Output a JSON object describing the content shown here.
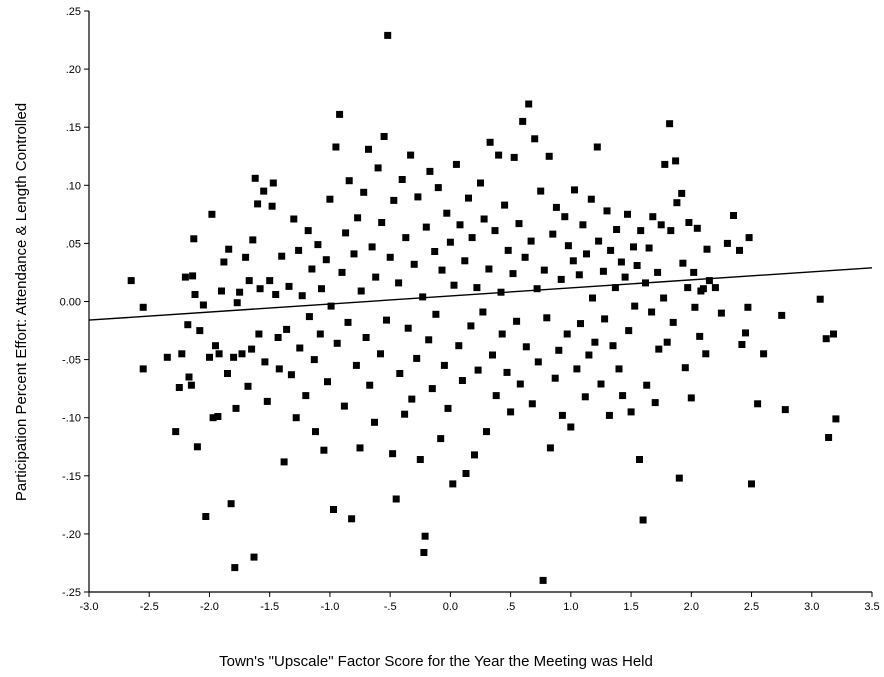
{
  "chart_data": {
    "type": "scatter",
    "title": "",
    "xlabel": "Town's \"Upscale\" Factor Score for the Year the Meeting was Held",
    "ylabel": "Participation Percent Effort: Attendance & Length Controlled",
    "xlim": [
      -3.0,
      3.5
    ],
    "ylim": [
      -0.25,
      0.25
    ],
    "x_ticks": [
      "-3.0",
      "-2.5",
      "-2.0",
      "-1.5",
      "-1.0",
      "-.5",
      "0.0",
      ".5",
      "1.0",
      "1.5",
      "2.0",
      "2.5",
      "3.0",
      "3.5"
    ],
    "y_ticks": [
      ".25",
      ".20",
      ".15",
      ".10",
      ".05",
      "0.00",
      "-.05",
      "-.10",
      "-.15",
      "-.20",
      "-.25"
    ],
    "grid": false,
    "marker": "square",
    "marker_color": "#000000",
    "fit_line": {
      "x": [
        -3.0,
        3.5
      ],
      "y": [
        -0.016,
        0.029
      ]
    },
    "n_points_approx": 1200,
    "points": [
      [
        -2.65,
        0.018
      ],
      [
        -2.55,
        -0.005
      ],
      [
        -2.55,
        -0.058
      ],
      [
        -2.35,
        -0.048
      ],
      [
        -2.28,
        -0.112
      ],
      [
        -2.25,
        -0.074
      ],
      [
        -2.23,
        -0.045
      ],
      [
        -2.2,
        0.021
      ],
      [
        -2.18,
        -0.02
      ],
      [
        -2.17,
        -0.065
      ],
      [
        -2.15,
        -0.072
      ],
      [
        -2.14,
        0.022
      ],
      [
        -2.13,
        0.054
      ],
      [
        -2.12,
        0.006
      ],
      [
        -2.1,
        -0.125
      ],
      [
        -2.08,
        -0.025
      ],
      [
        -2.05,
        -0.003
      ],
      [
        -2.03,
        -0.185
      ],
      [
        -2.0,
        -0.048
      ],
      [
        -1.98,
        0.075
      ],
      [
        -1.97,
        -0.1
      ],
      [
        -1.95,
        -0.038
      ],
      [
        -1.93,
        -0.099
      ],
      [
        -1.92,
        -0.045
      ],
      [
        -1.9,
        0.009
      ],
      [
        -1.88,
        0.034
      ],
      [
        -1.85,
        -0.062
      ],
      [
        -1.84,
        0.045
      ],
      [
        -1.82,
        -0.174
      ],
      [
        -1.8,
        -0.048
      ],
      [
        -1.79,
        -0.229
      ],
      [
        -1.78,
        -0.092
      ],
      [
        -1.77,
        -0.001
      ],
      [
        -1.75,
        0.008
      ],
      [
        -1.73,
        -0.045
      ],
      [
        -1.7,
        0.038
      ],
      [
        -1.68,
        -0.073
      ],
      [
        -1.67,
        0.018
      ],
      [
        -1.65,
        -0.041
      ],
      [
        -1.64,
        0.053
      ],
      [
        -1.63,
        -0.22
      ],
      [
        -1.62,
        0.106
      ],
      [
        -1.6,
        0.084
      ],
      [
        -1.59,
        -0.028
      ],
      [
        -1.58,
        0.011
      ],
      [
        -1.55,
        0.095
      ],
      [
        -1.54,
        -0.052
      ],
      [
        -1.52,
        -0.086
      ],
      [
        -1.5,
        0.018
      ],
      [
        -1.48,
        0.082
      ],
      [
        -1.47,
        0.102
      ],
      [
        -1.45,
        0.006
      ],
      [
        -1.43,
        -0.031
      ],
      [
        -1.42,
        -0.058
      ],
      [
        -1.4,
        0.039
      ],
      [
        -1.38,
        -0.138
      ],
      [
        -1.36,
        -0.024
      ],
      [
        -1.34,
        0.013
      ],
      [
        -1.32,
        -0.063
      ],
      [
        -1.3,
        0.071
      ],
      [
        -1.28,
        -0.1
      ],
      [
        -1.26,
        0.044
      ],
      [
        -1.25,
        -0.04
      ],
      [
        -1.23,
        0.005
      ],
      [
        -1.2,
        -0.081
      ],
      [
        -1.18,
        0.061
      ],
      [
        -1.17,
        -0.013
      ],
      [
        -1.15,
        0.028
      ],
      [
        -1.13,
        -0.05
      ],
      [
        -1.12,
        -0.112
      ],
      [
        -1.1,
        0.049
      ],
      [
        -1.08,
        -0.028
      ],
      [
        -1.07,
        0.011
      ],
      [
        -1.05,
        -0.128
      ],
      [
        -1.03,
        0.036
      ],
      [
        -1.02,
        -0.069
      ],
      [
        -1.0,
        0.088
      ],
      [
        -0.99,
        -0.004
      ],
      [
        -0.97,
        -0.179
      ],
      [
        -0.95,
        0.133
      ],
      [
        -0.94,
        -0.036
      ],
      [
        -0.92,
        0.161
      ],
      [
        -0.9,
        0.025
      ],
      [
        -0.88,
        -0.09
      ],
      [
        -0.87,
        0.059
      ],
      [
        -0.85,
        -0.018
      ],
      [
        -0.84,
        0.104
      ],
      [
        -0.82,
        -0.187
      ],
      [
        -0.8,
        0.041
      ],
      [
        -0.78,
        -0.055
      ],
      [
        -0.77,
        0.072
      ],
      [
        -0.75,
        -0.126
      ],
      [
        -0.74,
        0.009
      ],
      [
        -0.72,
        0.094
      ],
      [
        -0.7,
        -0.031
      ],
      [
        -0.68,
        0.131
      ],
      [
        -0.67,
        -0.072
      ],
      [
        -0.65,
        0.047
      ],
      [
        -0.63,
        -0.104
      ],
      [
        -0.62,
        0.021
      ],
      [
        -0.6,
        0.115
      ],
      [
        -0.58,
        -0.045
      ],
      [
        -0.57,
        0.068
      ],
      [
        -0.55,
        0.142
      ],
      [
        -0.53,
        -0.016
      ],
      [
        -0.52,
        0.229
      ],
      [
        -0.5,
        0.038
      ],
      [
        -0.48,
        -0.131
      ],
      [
        -0.47,
        0.087
      ],
      [
        -0.45,
        -0.17
      ],
      [
        -0.43,
        0.016
      ],
      [
        -0.42,
        -0.062
      ],
      [
        -0.4,
        0.105
      ],
      [
        -0.38,
        -0.097
      ],
      [
        -0.37,
        0.055
      ],
      [
        -0.35,
        -0.023
      ],
      [
        -0.33,
        0.126
      ],
      [
        -0.32,
        -0.084
      ],
      [
        -0.3,
        0.032
      ],
      [
        -0.28,
        -0.049
      ],
      [
        -0.27,
        0.09
      ],
      [
        -0.25,
        -0.136
      ],
      [
        -0.23,
        0.004
      ],
      [
        -0.22,
        -0.216
      ],
      [
        -0.21,
        -0.202
      ],
      [
        -0.2,
        0.064
      ],
      [
        -0.18,
        -0.033
      ],
      [
        -0.17,
        0.112
      ],
      [
        -0.15,
        -0.075
      ],
      [
        -0.13,
        0.043
      ],
      [
        -0.12,
        -0.011
      ],
      [
        -0.1,
        0.098
      ],
      [
        -0.08,
        -0.118
      ],
      [
        -0.07,
        0.027
      ],
      [
        -0.05,
        -0.055
      ],
      [
        -0.03,
        0.076
      ],
      [
        -0.02,
        -0.092
      ],
      [
        0.0,
        0.051
      ],
      [
        0.02,
        -0.157
      ],
      [
        0.03,
        0.014
      ],
      [
        0.05,
        0.118
      ],
      [
        0.07,
        -0.038
      ],
      [
        0.08,
        0.066
      ],
      [
        0.1,
        -0.068
      ],
      [
        0.12,
        0.035
      ],
      [
        0.13,
        -0.148
      ],
      [
        0.15,
        0.089
      ],
      [
        0.17,
        -0.021
      ],
      [
        0.18,
        0.055
      ],
      [
        0.2,
        -0.132
      ],
      [
        0.22,
        0.012
      ],
      [
        0.23,
        -0.059
      ],
      [
        0.25,
        0.102
      ],
      [
        0.27,
        -0.009
      ],
      [
        0.28,
        0.071
      ],
      [
        0.3,
        -0.112
      ],
      [
        0.32,
        0.028
      ],
      [
        0.33,
        0.137
      ],
      [
        0.35,
        -0.046
      ],
      [
        0.37,
        0.061
      ],
      [
        0.38,
        -0.081
      ],
      [
        0.4,
        0.126
      ],
      [
        0.42,
        0.008
      ],
      [
        0.43,
        -0.028
      ],
      [
        0.45,
        0.083
      ],
      [
        0.47,
        -0.061
      ],
      [
        0.48,
        0.044
      ],
      [
        0.5,
        -0.095
      ],
      [
        0.52,
        0.024
      ],
      [
        0.53,
        0.124
      ],
      [
        0.55,
        -0.017
      ],
      [
        0.57,
        0.067
      ],
      [
        0.58,
        -0.071
      ],
      [
        0.6,
        0.155
      ],
      [
        0.62,
        0.038
      ],
      [
        0.63,
        -0.039
      ],
      [
        0.65,
        0.17
      ],
      [
        0.67,
        0.052
      ],
      [
        0.68,
        -0.088
      ],
      [
        0.7,
        0.14
      ],
      [
        0.72,
        0.011
      ],
      [
        0.73,
        -0.052
      ],
      [
        0.75,
        0.095
      ],
      [
        0.77,
        -0.24
      ],
      [
        0.78,
        0.027
      ],
      [
        0.8,
        -0.014
      ],
      [
        0.82,
        0.125
      ],
      [
        0.83,
        -0.126
      ],
      [
        0.85,
        0.058
      ],
      [
        0.87,
        -0.066
      ],
      [
        0.88,
        0.081
      ],
      [
        0.9,
        -0.042
      ],
      [
        0.92,
        0.019
      ],
      [
        0.93,
        -0.098
      ],
      [
        0.95,
        0.073
      ],
      [
        0.97,
        -0.028
      ],
      [
        0.98,
        0.048
      ],
      [
        1.0,
        -0.108
      ],
      [
        1.02,
        0.035
      ],
      [
        1.03,
        0.096
      ],
      [
        1.05,
        -0.058
      ],
      [
        1.07,
        0.023
      ],
      [
        1.08,
        -0.019
      ],
      [
        1.1,
        0.066
      ],
      [
        1.12,
        -0.082
      ],
      [
        1.13,
        0.041
      ],
      [
        1.15,
        -0.046
      ],
      [
        1.17,
        0.088
      ],
      [
        1.18,
        0.003
      ],
      [
        1.2,
        -0.035
      ],
      [
        1.22,
        0.133
      ],
      [
        1.23,
        0.052
      ],
      [
        1.25,
        -0.071
      ],
      [
        1.27,
        0.026
      ],
      [
        1.28,
        -0.015
      ],
      [
        1.3,
        0.078
      ],
      [
        1.32,
        -0.098
      ],
      [
        1.33,
        0.044
      ],
      [
        1.35,
        -0.038
      ],
      [
        1.37,
        0.012
      ],
      [
        1.38,
        0.062
      ],
      [
        1.4,
        -0.058
      ],
      [
        1.42,
        0.034
      ],
      [
        1.43,
        -0.081
      ],
      [
        1.45,
        0.021
      ],
      [
        1.47,
        0.075
      ],
      [
        1.48,
        -0.025
      ],
      [
        1.5,
        -0.095
      ],
      [
        1.52,
        0.047
      ],
      [
        1.53,
        -0.004
      ],
      [
        1.55,
        0.031
      ],
      [
        1.57,
        -0.136
      ],
      [
        1.58,
        0.061
      ],
      [
        1.6,
        -0.188
      ],
      [
        1.62,
        0.016
      ],
      [
        1.63,
        -0.072
      ],
      [
        1.65,
        0.046
      ],
      [
        1.67,
        -0.009
      ],
      [
        1.68,
        0.073
      ],
      [
        1.7,
        -0.087
      ],
      [
        1.72,
        0.025
      ],
      [
        1.73,
        -0.041
      ],
      [
        1.75,
        0.066
      ],
      [
        1.77,
        0.003
      ],
      [
        1.78,
        0.118
      ],
      [
        1.8,
        -0.035
      ],
      [
        1.82,
        0.153
      ],
      [
        1.83,
        0.061
      ],
      [
        1.85,
        -0.018
      ],
      [
        1.87,
        0.121
      ],
      [
        1.88,
        0.085
      ],
      [
        1.9,
        -0.152
      ],
      [
        1.92,
        0.093
      ],
      [
        1.93,
        0.033
      ],
      [
        1.95,
        -0.057
      ],
      [
        1.97,
        0.012
      ],
      [
        1.98,
        0.068
      ],
      [
        2.0,
        -0.083
      ],
      [
        2.02,
        0.025
      ],
      [
        2.03,
        -0.005
      ],
      [
        2.05,
        0.063
      ],
      [
        2.07,
        -0.03
      ],
      [
        2.08,
        0.009
      ],
      [
        2.1,
        0.011
      ],
      [
        2.12,
        -0.045
      ],
      [
        2.13,
        0.045
      ],
      [
        2.15,
        0.018
      ],
      [
        2.2,
        0.012
      ],
      [
        2.25,
        -0.01
      ],
      [
        2.3,
        0.05
      ],
      [
        2.35,
        0.074
      ],
      [
        2.4,
        0.044
      ],
      [
        2.42,
        -0.037
      ],
      [
        2.45,
        -0.027
      ],
      [
        2.47,
        -0.005
      ],
      [
        2.48,
        0.055
      ],
      [
        2.5,
        -0.157
      ],
      [
        2.55,
        -0.088
      ],
      [
        2.6,
        -0.045
      ],
      [
        2.75,
        -0.012
      ],
      [
        2.78,
        -0.093
      ],
      [
        3.07,
        0.002
      ],
      [
        3.12,
        -0.032
      ],
      [
        3.14,
        -0.117
      ],
      [
        3.18,
        -0.028
      ],
      [
        3.2,
        -0.101
      ]
    ]
  }
}
